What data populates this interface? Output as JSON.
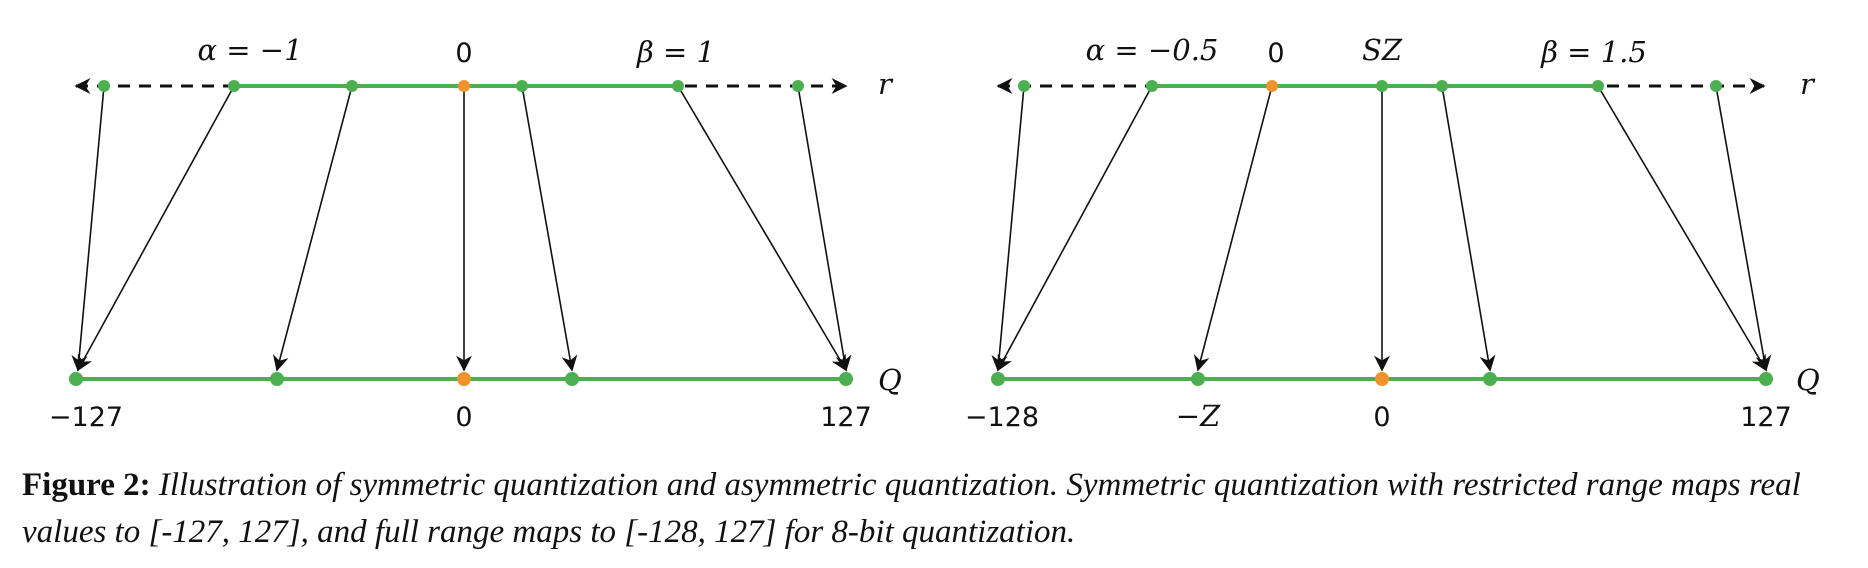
{
  "colors": {
    "line": "#4caf50",
    "point": "#4caf50",
    "zero_point": "#f0932b",
    "arrow": "#111111",
    "axis_dash": "#111111"
  },
  "panels": [
    {
      "name": "symmetric",
      "r_axis_label": "r",
      "q_axis_label": "Q",
      "top_labels": [
        {
          "id": "alpha",
          "text": "α = −1"
        },
        {
          "id": "zero",
          "text": "0"
        },
        {
          "id": "beta",
          "text": "β = 1"
        }
      ],
      "bottom_labels": [
        {
          "id": "min",
          "text": "−127"
        },
        {
          "id": "zero",
          "text": "0"
        },
        {
          "id": "max",
          "text": "127"
        }
      ]
    },
    {
      "name": "asymmetric",
      "r_axis_label": "r",
      "q_axis_label": "Q",
      "top_labels": [
        {
          "id": "alpha",
          "text": "α = −0.5"
        },
        {
          "id": "zero",
          "text": "0"
        },
        {
          "id": "sz",
          "text": "SZ"
        },
        {
          "id": "beta",
          "text": "β = 1.5"
        }
      ],
      "bottom_labels": [
        {
          "id": "min",
          "text": "−128"
        },
        {
          "id": "negz",
          "text": "−Z"
        },
        {
          "id": "zero",
          "text": "0"
        },
        {
          "id": "max",
          "text": "127"
        }
      ]
    }
  ],
  "caption": {
    "label": "Figure 2:",
    "text": "Illustration of symmetric quantization and asymmetric quantization. Symmetric quantization with restricted range maps real values to [-127, 127], and full range maps to [-128, 127] for 8-bit quantization."
  }
}
